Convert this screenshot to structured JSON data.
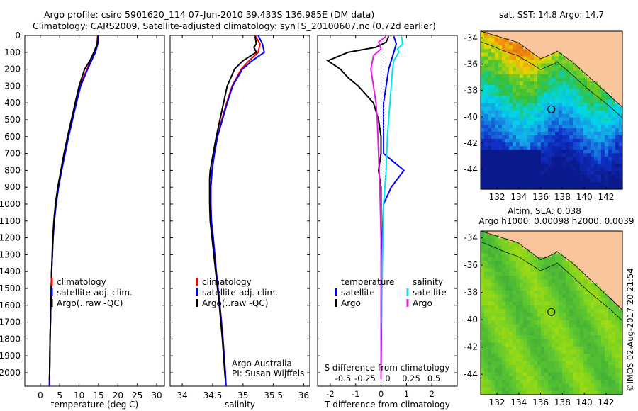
{
  "title_line1": "Argo profile: csiro 5901620_114 07-Jun-2010 39.433S 136.985E (DM data)",
  "title_line2": "Climatology: CARS2009. Satellite-adjusted climatology: synTS_20100607.nc (0.72d earlier)",
  "sst_title": "sat. SST: 14.8 Argo: 14.7",
  "sla_title1": "Altim. SLA: 0.038",
  "sla_title2": "Argo h1000: 0.00098 h2000: 0.0039",
  "credit_line1": "Argo Australia",
  "credit_line2": "PI: Susan Wijffels",
  "side_stamp": "©IMOS 02-Aug-2017 20:21:54",
  "colors": {
    "climatology": "#ff0000",
    "satellite": "#0000ff",
    "argo": "#000000",
    "cyan": "#00e5ee",
    "magenta": "#e020e0",
    "land": "#f9c59c"
  },
  "chart_data": [
    {
      "type": "line",
      "xlabel": "temperature (deg C)",
      "ylabel": "",
      "xlim": [
        -4,
        32
      ],
      "ylim": [
        2080,
        0
      ],
      "xticks": [
        0,
        5,
        10,
        15,
        20,
        25,
        30
      ],
      "yticks": [
        0,
        100,
        200,
        300,
        400,
        500,
        600,
        700,
        800,
        900,
        1000,
        1100,
        1200,
        1300,
        1400,
        1500,
        1600,
        1700,
        1800,
        1900,
        2000
      ],
      "legend": [
        "climatology",
        "satellite-adj. clim.",
        "Argo(..raw -QC)"
      ],
      "series": [
        {
          "name": "climatology",
          "depth": [
            0,
            50,
            100,
            200,
            300,
            400,
            500,
            600,
            700,
            800,
            900,
            1000,
            1100,
            1200,
            1400,
            1600,
            1800,
            2000,
            2080
          ],
          "values": [
            14.8,
            14.6,
            14.0,
            12.0,
            10.2,
            9.2,
            8.2,
            7.2,
            6.3,
            5.4,
            4.6,
            4.0,
            3.6,
            3.3,
            2.9,
            2.7,
            2.5,
            2.4,
            2.35
          ]
        },
        {
          "name": "satellite-adj. clim.",
          "depth": [
            0,
            50,
            100,
            200,
            300,
            400,
            500,
            600,
            700,
            800,
            900,
            1000,
            1100,
            1200,
            1400,
            1600,
            1800,
            2000,
            2080
          ],
          "values": [
            15.0,
            14.8,
            14.2,
            12.2,
            10.4,
            9.3,
            8.3,
            7.3,
            6.4,
            5.5,
            4.7,
            4.1,
            3.6,
            3.3,
            2.9,
            2.7,
            2.5,
            2.4,
            2.35
          ]
        },
        {
          "name": "Argo(..raw -QC)",
          "depth": [
            5,
            50,
            100,
            150,
            200,
            300,
            400,
            500,
            600,
            700,
            800,
            900,
            1000,
            1100,
            1200,
            1400,
            1600,
            1800,
            2000,
            2040
          ],
          "values": [
            14.8,
            14.7,
            13.8,
            12.8,
            11.4,
            10.0,
            9.0,
            8.0,
            7.0,
            6.1,
            5.3,
            4.5,
            3.9,
            3.5,
            3.2,
            2.9,
            2.7,
            2.5,
            2.4,
            2.35
          ]
        }
      ]
    },
    {
      "type": "line",
      "xlabel": "salinity",
      "xlim": [
        33.8,
        36.1
      ],
      "ylim": [
        2080,
        0
      ],
      "xticks": [
        34,
        34.5,
        35,
        35.5,
        36
      ],
      "legend": [
        "climatology",
        "satellite-adj. clim.",
        "Argo(..raw -QC)"
      ],
      "series": [
        {
          "name": "climatology",
          "depth": [
            0,
            50,
            100,
            150,
            200,
            300,
            400,
            500,
            600,
            700,
            800,
            900,
            1000,
            1100,
            1200,
            1400,
            1600,
            1800,
            2000,
            2080
          ],
          "values": [
            35.2,
            35.28,
            35.25,
            35.1,
            34.97,
            34.82,
            34.73,
            34.65,
            34.58,
            34.53,
            34.49,
            34.47,
            34.47,
            34.48,
            34.51,
            34.56,
            34.62,
            34.67,
            34.71,
            34.72
          ]
        },
        {
          "name": "satellite-adj. clim.",
          "depth": [
            0,
            50,
            100,
            150,
            200,
            300,
            400,
            500,
            600,
            700,
            800,
            900,
            1000,
            1100,
            1200,
            1400,
            1600,
            1800,
            2000,
            2080
          ],
          "values": [
            35.25,
            35.32,
            35.35,
            35.15,
            34.99,
            34.83,
            34.74,
            34.66,
            34.58,
            34.53,
            34.49,
            34.47,
            34.47,
            34.48,
            34.51,
            34.56,
            34.62,
            34.67,
            34.71,
            34.72
          ]
        },
        {
          "name": "Argo(..raw -QC)",
          "depth": [
            5,
            50,
            70,
            100,
            150,
            200,
            250,
            300,
            400,
            500,
            600,
            700,
            800,
            850,
            900,
            1000,
            1100,
            1200,
            1400,
            1600,
            1800,
            2000,
            2040
          ],
          "values": [
            35.2,
            35.22,
            35.18,
            35.22,
            35.0,
            34.86,
            34.8,
            34.74,
            34.68,
            34.62,
            34.56,
            34.51,
            34.46,
            34.45,
            34.45,
            34.45,
            34.46,
            34.49,
            34.55,
            34.61,
            34.66,
            34.7,
            34.71
          ]
        }
      ]
    },
    {
      "type": "line",
      "xlabel": "T difference from climatology",
      "x2label": "S difference from climatology",
      "xlim": [
        -2.5,
        3.0
      ],
      "ylim": [
        2080,
        0
      ],
      "xticks": [
        -2,
        -1,
        0,
        1,
        2
      ],
      "x2ticks": [
        "-0.5",
        "-0.25",
        "0",
        "0.25",
        "0.5"
      ],
      "legend_left_title": "temperature",
      "legend_right_title": "salinity",
      "legend_items": [
        "satellite",
        "Argo"
      ],
      "series": [
        {
          "name": "T satellite",
          "depth": [
            5,
            50,
            100,
            200,
            300,
            400,
            500,
            600,
            700,
            800,
            900,
            1000,
            1200,
            1600,
            2000,
            2040
          ],
          "values": [
            0.5,
            0.6,
            0.5,
            0.3,
            0.2,
            0.1,
            0.1,
            0.1,
            0.1,
            0.9,
            0.4,
            0.1,
            0.05,
            0.02,
            0.0,
            0.0
          ]
        },
        {
          "name": "T Argo",
          "depth": [
            5,
            40,
            70,
            100,
            150,
            200,
            250,
            300,
            400,
            500,
            600,
            700,
            800,
            900,
            1000,
            1200,
            1600,
            2000,
            2040
          ],
          "values": [
            0.3,
            0.2,
            -0.2,
            -1.3,
            -2.1,
            -1.6,
            -1.3,
            -0.9,
            -0.3,
            -0.1,
            0.0,
            0.0,
            -0.1,
            0.0,
            0.0,
            0.0,
            0.0,
            0.0,
            0.0
          ]
        },
        {
          "name": "S satellite",
          "depth": [
            5,
            50,
            80,
            100,
            150,
            200,
            300,
            400,
            600,
            800,
            1000,
            1400,
            1800,
            2040
          ],
          "values": [
            0.8,
            0.85,
            0.65,
            0.7,
            0.5,
            0.45,
            0.4,
            0.35,
            0.25,
            0.2,
            0.1,
            0.05,
            0.0,
            0.0
          ]
        },
        {
          "name": "S Argo",
          "depth": [
            5,
            40,
            80,
            120,
            200,
            300,
            400,
            500,
            700,
            900,
            1200,
            1600,
            2040
          ],
          "values": [
            0.2,
            -0.1,
            0.0,
            -0.3,
            -0.4,
            -0.3,
            -0.2,
            -0.15,
            -0.1,
            -0.05,
            0.0,
            0.0,
            0.0
          ]
        }
      ]
    },
    {
      "type": "heatmap",
      "title": "sat. SST: 14.8 Argo: 14.7",
      "xlim": [
        130.5,
        143.5
      ],
      "ylim": [
        -45.5,
        -33.5
      ],
      "xticks": [
        132,
        134,
        136,
        138,
        140,
        142
      ],
      "yticks": [
        -34,
        -36,
        -38,
        -40,
        -42,
        -44
      ],
      "marker": [
        136.985,
        -39.433
      ]
    },
    {
      "type": "heatmap",
      "title": "Altim. SLA: 0.038",
      "xlim": [
        130.5,
        143.5
      ],
      "ylim": [
        -45.5,
        -33.5
      ],
      "xticks": [
        132,
        134,
        136,
        138,
        140,
        142
      ],
      "yticks": [
        -34,
        -36,
        -38,
        -40,
        -42,
        -44
      ],
      "marker": [
        136.985,
        -39.433
      ]
    }
  ]
}
